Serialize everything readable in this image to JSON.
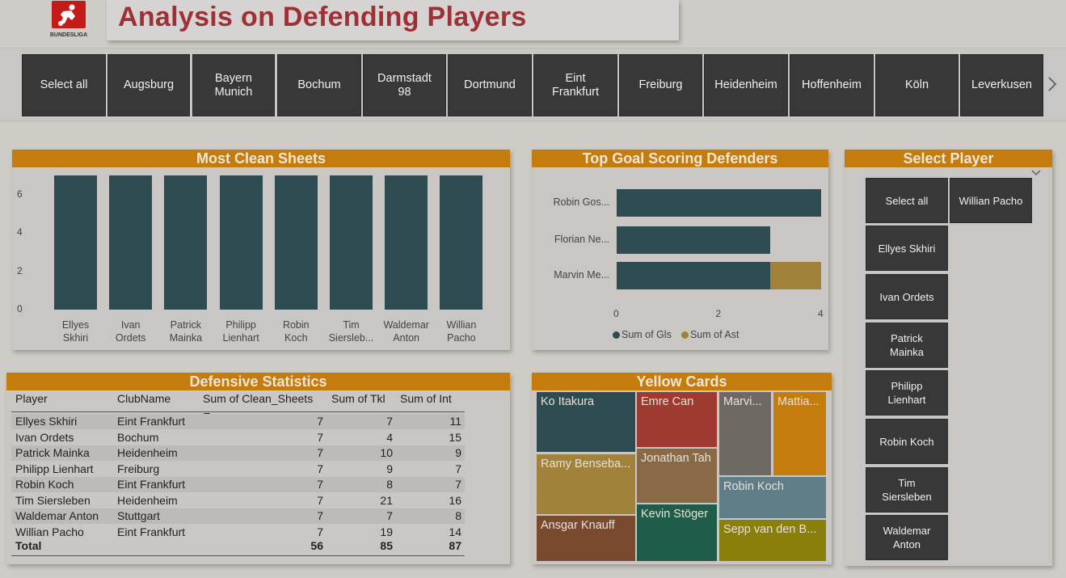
{
  "header": {
    "title": "Analysis on Defending Players",
    "logo_text": "BUNDESLIGA"
  },
  "team_slicer": {
    "items": [
      "Select all",
      "Augsburg",
      "Bayern Munich",
      "Bochum",
      "Darmstadt 98",
      "Dortmund",
      "Eint Frankfurt",
      "Freiburg",
      "Heidenheim",
      "Hoffenheim",
      "Köln",
      "Leverkusen"
    ],
    "next_icon": "chevron-right-icon"
  },
  "clean_sheets": {
    "title": "Most Clean Sheets"
  },
  "goal_scoring": {
    "title": "Top Goal Scoring Defenders"
  },
  "select_player": {
    "title": "Select Player",
    "items": [
      "Select all",
      "Willian Pacho",
      "Ellyes Skhiri",
      "Ivan Ordets",
      "Patrick Mainka",
      "Philipp Lienhart",
      "Robin Koch",
      "Tim Siersleben",
      "Waldemar Anton"
    ],
    "dropdown_icon": "chevron-down-icon"
  },
  "defensive_stats": {
    "title": "Defensive Statistics",
    "columns": [
      "Player",
      "ClubName",
      "Sum of Clean_Sheets",
      "Sum of Tkl",
      "Sum of Int"
    ],
    "rows": [
      [
        "Ellyes Skhiri",
        "Eint Frankfurt",
        "7",
        "7",
        "11"
      ],
      [
        "Ivan Ordets",
        "Bochum",
        "7",
        "4",
        "15"
      ],
      [
        "Patrick Mainka",
        "Heidenheim",
        "7",
        "10",
        "9"
      ],
      [
        "Philipp Lienhart",
        "Freiburg",
        "7",
        "9",
        "7"
      ],
      [
        "Robin Koch",
        "Eint Frankfurt",
        "7",
        "8",
        "7"
      ],
      [
        "Tim Siersleben",
        "Heidenheim",
        "7",
        "21",
        "16"
      ],
      [
        "Waldemar Anton",
        "Stuttgart",
        "7",
        "7",
        "8"
      ],
      [
        "Willian Pacho",
        "Eint Frankfurt",
        "7",
        "19",
        "14"
      ]
    ],
    "total": [
      "Total",
      "",
      "56",
      "85",
      "87"
    ]
  },
  "yellow_cards": {
    "title": "Yellow Cards",
    "tiles": [
      "Ko Itakura",
      "Emre Can",
      "Marvi...",
      "Mattia...",
      "Ramy Benseba...",
      "Jonathan Tah",
      "Robin Koch",
      "Ansgar Knauff",
      "Kevin Stöger",
      "Sepp van den B..."
    ]
  },
  "colors": {
    "accent": "#c47c0d",
    "title": "#9e3036",
    "bar_primary": "#2f4b52",
    "bar_secondary": "#a0823b"
  },
  "chart_data": [
    {
      "type": "bar",
      "title": "Most Clean Sheets",
      "categories": [
        "Ellyes Skhiri",
        "Ivan Ordets",
        "Patrick Mainka",
        "Philipp Lienhart",
        "Robin Koch",
        "Tim Siersleb...",
        "Waldemar Anton",
        "Willian Pacho"
      ],
      "values": [
        7,
        7,
        7,
        7,
        7,
        7,
        7,
        7
      ],
      "yticks": [
        0,
        2,
        4,
        6
      ],
      "ylim": [
        0,
        7
      ]
    },
    {
      "type": "bar",
      "orientation": "horizontal",
      "stacked": true,
      "title": "Top Goal Scoring Defenders",
      "categories": [
        "Robin Gos...",
        "Florian Ne...",
        "Marvin Me..."
      ],
      "series": [
        {
          "name": "Sum of Gls",
          "values": [
            4,
            3,
            3
          ],
          "color": "#2f4b52"
        },
        {
          "name": "Sum of Ast",
          "values": [
            0,
            0,
            1
          ],
          "color": "#a0823b"
        }
      ],
      "xticks": [
        0,
        2,
        4
      ],
      "xlim": [
        0,
        4
      ]
    },
    {
      "type": "treemap",
      "title": "Yellow Cards",
      "labels": [
        "Ko Itakura",
        "Emre Can",
        "Marvi...",
        "Mattia...",
        "Ramy Benseba...",
        "Jonathan Tah",
        "Robin Koch",
        "Ansgar Knauff",
        "Kevin Stöger",
        "Sepp van den B..."
      ],
      "colors": [
        "#2f4b52",
        "#9e3a2f",
        "#6f6964",
        "#c47c0d",
        "#a0823b",
        "#8a6a46",
        "#5f7e88",
        "#7a4a2f",
        "#1f5c4a",
        "#8a7f0a"
      ]
    }
  ]
}
